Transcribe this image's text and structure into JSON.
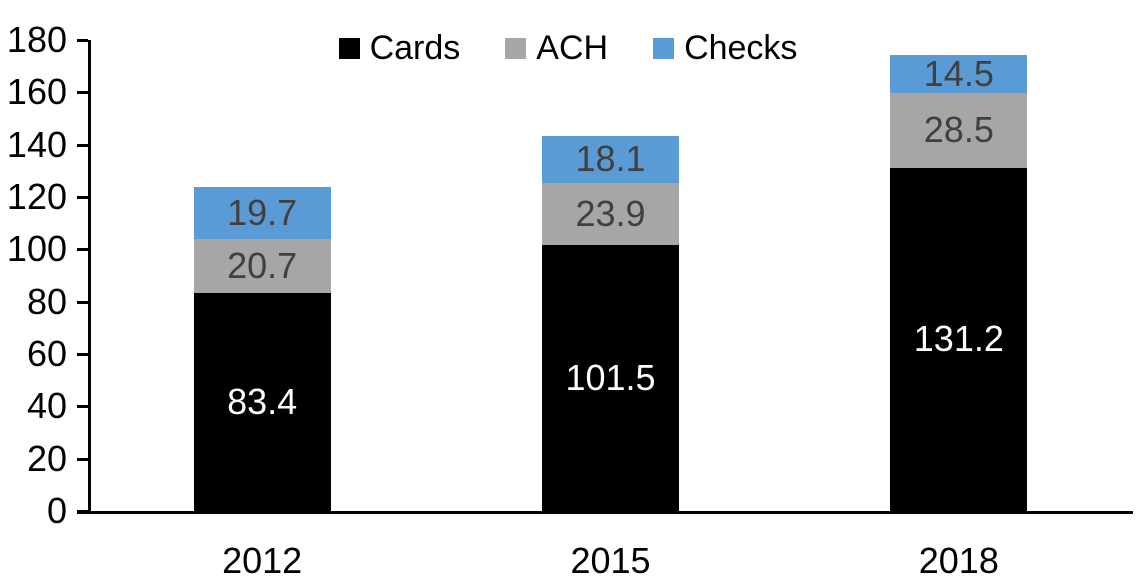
{
  "chart_data": {
    "type": "bar",
    "stacked": true,
    "title": "",
    "xlabel": "",
    "ylabel": "",
    "categories": [
      "2012",
      "2015",
      "2018"
    ],
    "series": [
      {
        "name": "Cards",
        "color": "#000000",
        "label_color": "#ffffff",
        "values": [
          83.4,
          101.5,
          131.2
        ]
      },
      {
        "name": "ACH",
        "color": "#a6a6a6",
        "label_color": "#404040",
        "values": [
          20.7,
          23.9,
          28.5
        ]
      },
      {
        "name": "Checks",
        "color": "#5b9bd5",
        "label_color": "#404040",
        "values": [
          19.7,
          18.1,
          14.5
        ]
      }
    ],
    "totals": [
      123.8,
      143.5,
      174.2
    ],
    "ylim": [
      0,
      180
    ],
    "ytick_step": 20,
    "ytick_labels": [
      "0",
      "20",
      "40",
      "60",
      "80",
      "100",
      "120",
      "140",
      "160",
      "180"
    ],
    "value_decimals": 1,
    "grid": false,
    "legend_position": "top",
    "axis_color": "#000000",
    "background_color": "#ffffff"
  }
}
